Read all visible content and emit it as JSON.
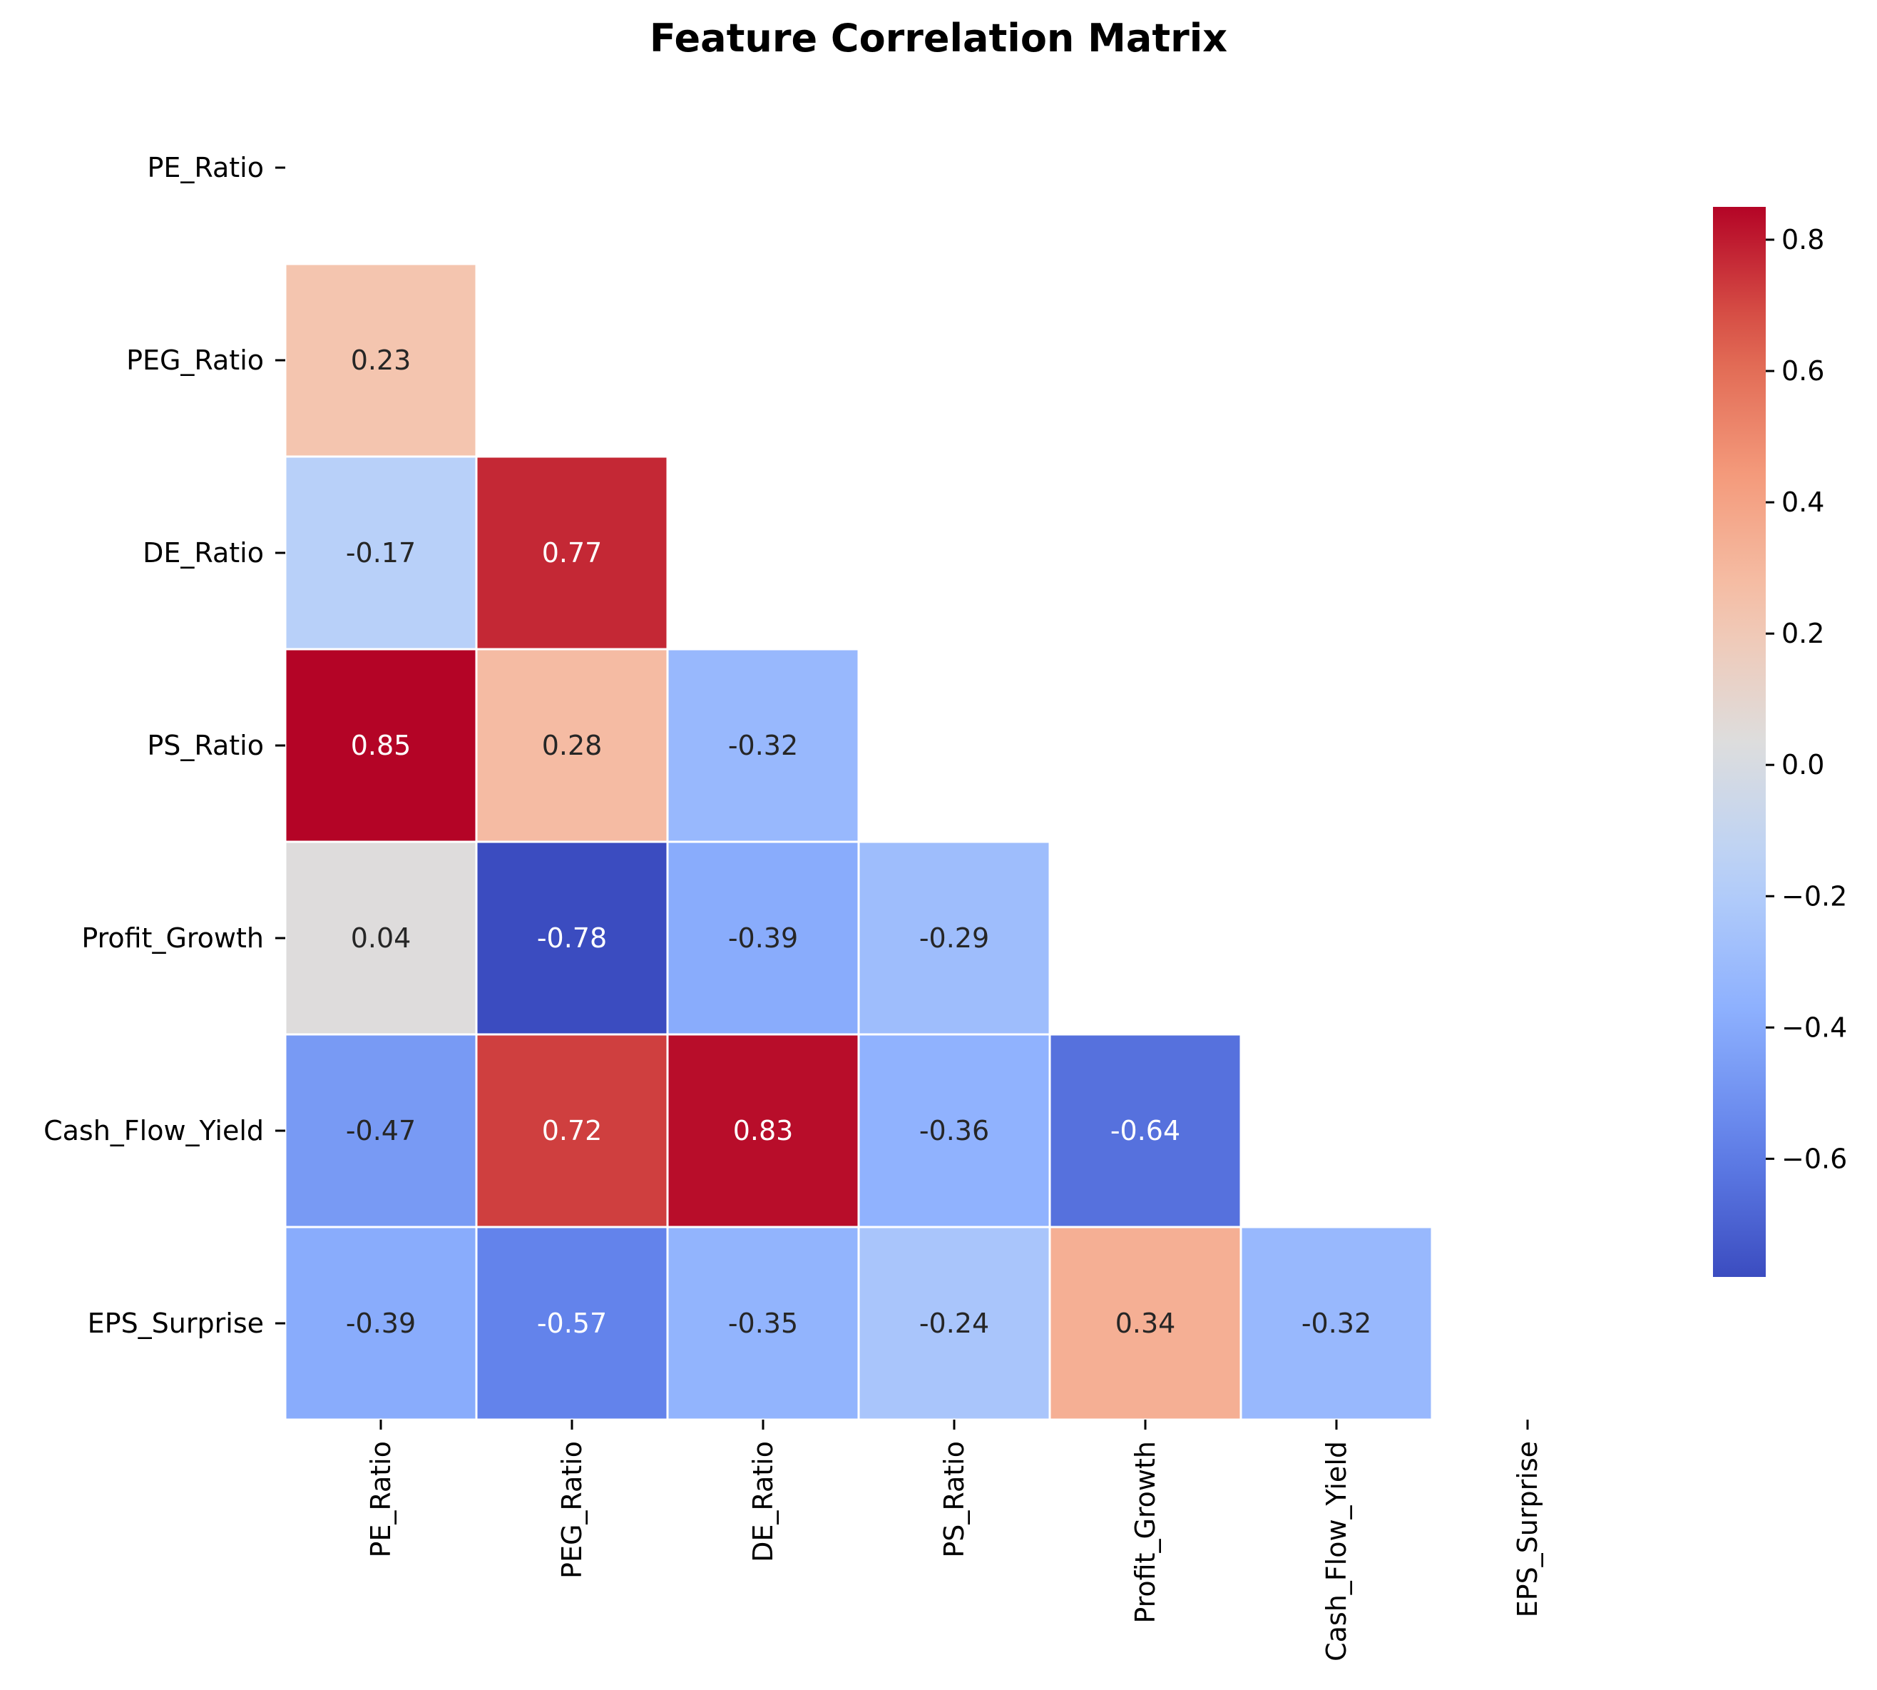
{
  "chart_data": {
    "type": "heatmap",
    "title": "Feature Correlation Matrix",
    "xlabel": "",
    "ylabel": "",
    "labels": [
      "PE_Ratio",
      "PEG_Ratio",
      "DE_Ratio",
      "PS_Ratio",
      "Profit_Growth",
      "Cash_Flow_Yield",
      "EPS_Surprise"
    ],
    "mask": "upper-triangle including diagonal",
    "matrix": [
      [
        null,
        null,
        null,
        null,
        null,
        null,
        null
      ],
      [
        0.23,
        null,
        null,
        null,
        null,
        null,
        null
      ],
      [
        -0.17,
        0.77,
        null,
        null,
        null,
        null,
        null
      ],
      [
        0.85,
        0.28,
        -0.32,
        null,
        null,
        null,
        null
      ],
      [
        0.04,
        -0.78,
        -0.39,
        -0.29,
        null,
        null,
        null
      ],
      [
        -0.47,
        0.72,
        0.83,
        -0.36,
        -0.64,
        null,
        null
      ],
      [
        -0.39,
        -0.57,
        -0.35,
        -0.24,
        0.34,
        -0.32,
        null
      ]
    ],
    "cell_labels": [
      [
        null,
        null,
        null,
        null,
        null,
        null,
        null
      ],
      [
        "0.23",
        null,
        null,
        null,
        null,
        null,
        null
      ],
      [
        "-0.17",
        "0.77",
        null,
        null,
        null,
        null,
        null
      ],
      [
        "0.85",
        "0.28",
        "-0.32",
        null,
        null,
        null,
        null
      ],
      [
        "0.04",
        "-0.78",
        "-0.39",
        "-0.29",
        null,
        null,
        null
      ],
      [
        "-0.47",
        "0.72",
        "0.83",
        "-0.36",
        "-0.64",
        null,
        null
      ],
      [
        "-0.39",
        "-0.57",
        "-0.35",
        "-0.24",
        "0.34",
        "-0.32",
        null
      ]
    ],
    "colormap": "coolwarm",
    "vmin": -0.78,
    "vmax": 0.85,
    "colorbar": {
      "ticks": [
        0.8,
        0.6,
        0.4,
        0.2,
        0.0,
        -0.2,
        -0.4,
        -0.6
      ],
      "tick_labels": [
        "0.8",
        "0.6",
        "0.4",
        "0.2",
        "0.0",
        "−0.2",
        "−0.4",
        "−0.6"
      ]
    },
    "grid": false,
    "legend": "colorbar right"
  }
}
